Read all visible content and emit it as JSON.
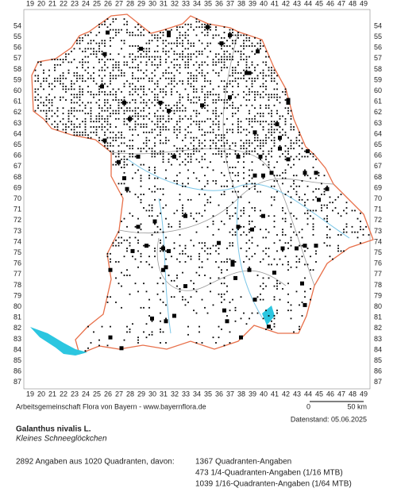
{
  "map": {
    "x_labels": [
      19,
      20,
      21,
      22,
      23,
      24,
      25,
      26,
      27,
      28,
      29,
      30,
      31,
      32,
      33,
      34,
      35,
      36,
      37,
      38,
      39,
      40,
      41,
      42,
      43,
      44,
      45,
      46,
      47,
      48,
      49
    ],
    "y_labels": [
      54,
      55,
      56,
      57,
      58,
      59,
      60,
      61,
      62,
      63,
      64,
      65,
      66,
      67,
      68,
      69,
      70,
      71,
      72,
      73,
      74,
      75,
      76,
      77,
      78,
      79,
      80,
      81,
      82,
      83,
      84,
      85,
      86,
      87
    ]
  },
  "footer": {
    "credit": "Arbeitsgemeinschaft Flora von Bayern - www.bayernflora.de",
    "scale_start": "0",
    "scale_end": "50 km",
    "date": "Datenstand: 05.06.2025"
  },
  "species": {
    "name": "Galanthus nivalis L.",
    "common_name": "Kleines Schneeglöckchen"
  },
  "stats": {
    "summary": "2892 Angaben aus 1020 Quadranten, davon:",
    "lines": [
      "1367 Quadranten-Angaben",
      "473 1/4-Quadranten-Angaben (1/16 MTB)",
      "1039 1/16-Quadranten-Angaben (1/64 MTB)"
    ]
  }
}
